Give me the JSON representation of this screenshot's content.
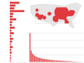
{
  "chart_data": [
    {
      "type": "bar",
      "orientation": "horizontal",
      "categories": [
        null,
        null,
        null,
        null,
        null,
        null,
        null,
        null,
        null,
        null,
        null,
        null,
        null,
        null,
        null,
        null,
        null,
        null,
        null,
        null,
        null,
        null
      ],
      "values": [
        60,
        35,
        28,
        90,
        22,
        18,
        40,
        15,
        12,
        30,
        10,
        25,
        8,
        20,
        14,
        6,
        18,
        9,
        12,
        5,
        7,
        4
      ],
      "color": "#e0393e",
      "xlim": [
        0,
        100
      ],
      "xticks": [
        0,
        100
      ],
      "grid": false,
      "tick_labels": false
    },
    {
      "type": "bubble",
      "x": [
        -87.6,
        -118.2,
        -74.0,
        -95.4,
        -112.1,
        -80.2,
        -122.4,
        -84.4,
        -97.7,
        -104.9,
        -90.2,
        -71.1,
        -77.0,
        -93.3,
        -81.7,
        -96.8,
        -86.2,
        -122.7,
        -115.1,
        -83.0
      ],
      "y": [
        41.9,
        34.1,
        40.7,
        29.8,
        33.4,
        25.8,
        37.8,
        33.7,
        30.3,
        39.7,
        38.6,
        42.4,
        38.9,
        45.0,
        30.3,
        32.8,
        39.8,
        45.5,
        36.2,
        40.0
      ],
      "size": [
        100,
        12,
        18,
        10,
        6,
        8,
        7,
        9,
        5,
        6,
        8,
        6,
        7,
        5,
        4,
        9,
        6,
        4,
        3,
        5
      ],
      "color": "#e0393e",
      "xlim": [
        -125,
        -66
      ],
      "ylim": [
        24,
        50
      ],
      "xticks": [
        -125,
        -66
      ],
      "yticks": [
        24,
        50
      ],
      "grid": false,
      "tick_labels": false
    },
    {
      "type": "bar",
      "categories": [
        null,
        null,
        null,
        null,
        null,
        null,
        null,
        null,
        null,
        null,
        null,
        null,
        null,
        null,
        null,
        null,
        null,
        null,
        null,
        null,
        null,
        null,
        null,
        null,
        null,
        null,
        null,
        null,
        null,
        null,
        null,
        null,
        null,
        null,
        null,
        null,
        null,
        null,
        null,
        null,
        null,
        null,
        null,
        null,
        null
      ],
      "values": [
        100,
        40,
        30,
        26,
        22,
        20,
        18,
        16,
        15,
        14,
        13,
        12,
        11,
        10.5,
        10,
        9.5,
        9,
        8.5,
        8,
        7.5,
        7,
        6.8,
        6.5,
        6.2,
        6,
        5.7,
        5.4,
        5.1,
        4.8,
        4.5,
        4.3,
        4,
        3.8,
        3.5,
        3.3,
        3,
        2.8,
        2.6,
        2.4,
        2.2,
        2,
        1.8,
        1.6,
        1.4,
        1.2
      ],
      "color": "#e0393e",
      "ylim": [
        0,
        100
      ],
      "yticks": [
        0,
        25,
        50,
        75,
        100
      ],
      "grid": true,
      "tick_labels": false
    }
  ]
}
